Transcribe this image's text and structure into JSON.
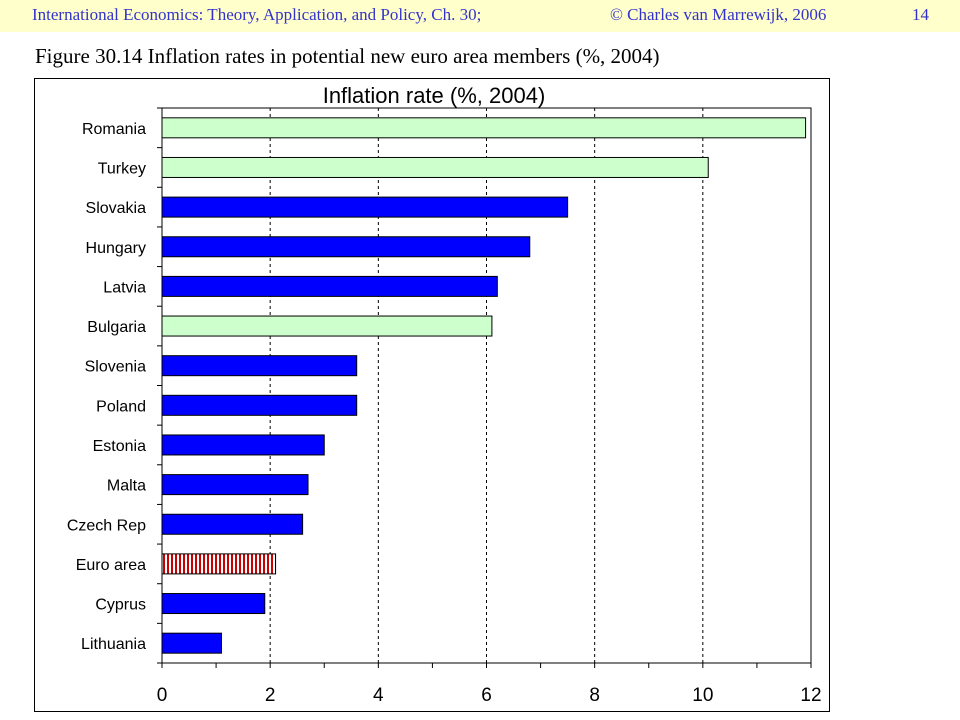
{
  "header": {
    "title": "International Economics: Theory, Application, and Policy, Ch. 30;",
    "copyright": "© Charles van Marrewijk, 2006",
    "page_number": "14"
  },
  "caption": "Figure 30.14 Inflation rates in potential new euro area members (%, 2004)",
  "colors": {
    "header_background": "#ffffcc",
    "header_text": "#3333cc",
    "candidate_bar": "#ccffcc",
    "member_bar": "#0000ff",
    "euro_area_hatch": "#cc0000"
  },
  "chart_data": {
    "type": "bar",
    "orientation": "horizontal",
    "title": "Inflation rate (%, 2004)",
    "xlabel": "",
    "ylabel": "",
    "categories": [
      "Romania",
      "Turkey",
      "Slovakia",
      "Hungary",
      "Latvia",
      "Bulgaria",
      "Slovenia",
      "Poland",
      "Estonia",
      "Malta",
      "Czech Rep",
      "Euro area",
      "Cyprus",
      "Lithuania"
    ],
    "values": [
      11.9,
      10.1,
      7.5,
      6.8,
      6.2,
      6.1,
      3.6,
      3.6,
      3.0,
      2.7,
      2.6,
      2.1,
      1.9,
      1.1
    ],
    "bar_colors": [
      "#ccffcc",
      "#ccffcc",
      "#0000ff",
      "#0000ff",
      "#0000ff",
      "#ccffcc",
      "#0000ff",
      "#0000ff",
      "#0000ff",
      "#0000ff",
      "#0000ff",
      "#cc0000",
      "#0000ff",
      "#0000ff"
    ],
    "hatched": [
      false,
      false,
      false,
      false,
      false,
      false,
      false,
      false,
      false,
      false,
      false,
      true,
      false,
      false
    ],
    "xlim": [
      0,
      12
    ],
    "xticks": [
      0,
      2,
      4,
      6,
      8,
      10,
      12
    ],
    "grid": true,
    "legend": false
  }
}
